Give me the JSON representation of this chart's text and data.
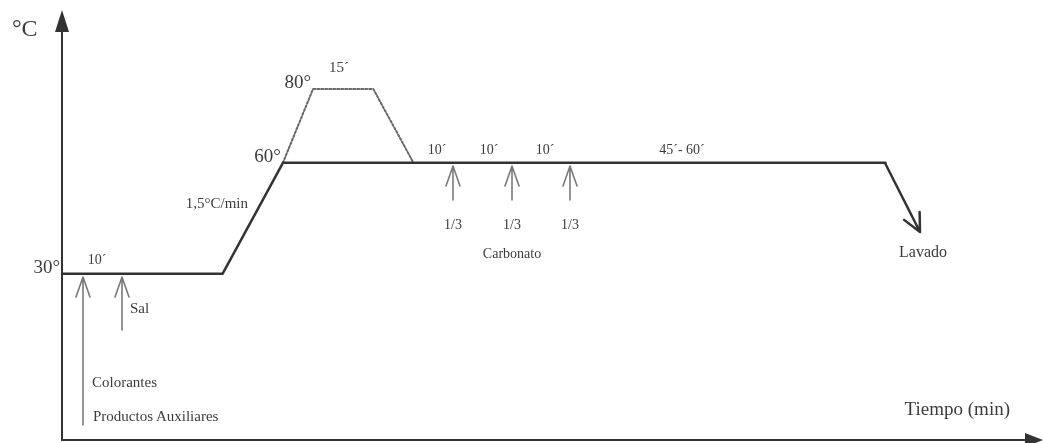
{
  "chart_data": {
    "type": "line",
    "xlabel": "Tiempo (min)",
    "ylabel": "°C",
    "categories": [
      null,
      null,
      null,
      null,
      null,
      null,
      null,
      null,
      null,
      null,
      null,
      null,
      null,
      null,
      null,
      null,
      null,
      null,
      null,
      null,
      null,
      null,
      null,
      null,
      null,
      null,
      null,
      null,
      null,
      null,
      null,
      null,
      null,
      null,
      null,
      null,
      null,
      null,
      null,
      null,
      null,
      null,
      null,
      null,
      null,
      null,
      null,
      null,
      null,
      null,
      null,
      null,
      null,
      null,
      null,
      null,
      null,
      null,
      null,
      null,
      null,
      null,
      null,
      null,
      null,
      null,
      null,
      null,
      null,
      null,
      null,
      null,
      null,
      null,
      null,
      null,
      null,
      null,
      null,
      null,
      null,
      null,
      null,
      null,
      null,
      null,
      null,
      null,
      null,
      null,
      null,
      null,
      null,
      null,
      null,
      null,
      null,
      null
    ],
    "series": [
      {
        "color": "#333333",
        "line_style": "solid",
        "values": [
          30,
          null,
          null,
          null,
          null,
          null,
          null,
          null,
          null,
          null,
          null,
          null,
          null,
          null,
          null,
          null,
          30,
          null,
          null,
          null,
          null,
          null,
          60,
          null,
          null,
          null,
          null,
          null,
          null,
          null,
          null,
          null,
          null,
          null,
          null,
          null,
          null,
          null,
          null,
          null,
          null,
          null,
          null,
          null,
          null,
          null,
          null,
          null,
          null,
          null,
          null,
          null,
          null,
          null,
          null,
          null,
          null,
          null,
          null,
          null,
          null,
          null,
          null,
          null,
          null,
          null,
          null,
          null,
          null,
          null,
          null,
          null,
          null,
          null,
          null,
          null,
          null,
          null,
          null,
          null,
          null,
          null,
          60,
          null,
          null,
          null,
          null,
          null,
          null,
          null,
          null,
          null,
          null,
          null,
          null,
          null,
          null,
          null
        ],
        "value_labels": [
          "30°",
          null,
          null,
          null,
          null,
          null,
          null,
          null,
          null,
          null,
          null,
          null,
          null,
          null,
          null,
          null,
          null,
          null,
          null,
          null,
          null,
          null,
          "60°",
          null,
          null,
          null,
          null,
          null,
          null,
          null,
          null,
          null,
          null,
          null,
          null,
          null,
          null,
          null,
          null,
          null,
          null,
          null,
          null,
          null,
          null,
          null,
          null,
          null,
          null,
          null,
          null,
          null,
          null,
          null,
          null,
          null,
          null,
          null,
          null,
          null,
          null,
          null,
          null,
          null,
          null,
          null,
          null,
          null,
          null,
          null,
          null,
          null,
          null,
          null,
          null,
          null,
          null,
          null,
          null,
          null,
          null,
          null,
          null,
          null,
          null,
          null,
          null,
          null,
          null,
          null,
          null,
          null,
          null,
          null,
          null,
          null,
          null,
          null
        ]
      },
      {
        "color": "#666666",
        "line_style": "dotted",
        "values": [
          null,
          null,
          null,
          null,
          null,
          null,
          null,
          null,
          null,
          null,
          null,
          null,
          null,
          null,
          null,
          null,
          null,
          null,
          null,
          null,
          null,
          null,
          60,
          null,
          null,
          80,
          null,
          null,
          null,
          null,
          null,
          80,
          null,
          null,
          null,
          60,
          null,
          null,
          null,
          null,
          null,
          null,
          null,
          null,
          null,
          null,
          null,
          null,
          null,
          null,
          null,
          null,
          null,
          null,
          null,
          null,
          null,
          null,
          null,
          null,
          null,
          null,
          null,
          null,
          null,
          null,
          null,
          null,
          null,
          null,
          null,
          null,
          null,
          null,
          null,
          null,
          null,
          null,
          null,
          null,
          null,
          null,
          null,
          null,
          null,
          null,
          null,
          null,
          null,
          null,
          null,
          null,
          null,
          null,
          null,
          null,
          null,
          null
        ],
        "value_labels": [
          null,
          null,
          null,
          null,
          null,
          null,
          null,
          null,
          null,
          null,
          null,
          null,
          null,
          null,
          null,
          null,
          null,
          null,
          null,
          null,
          null,
          null,
          null,
          null,
          null,
          "80°",
          null,
          null,
          null,
          null,
          null,
          null,
          null,
          null,
          null,
          null,
          null,
          null,
          null,
          null,
          null,
          null,
          null,
          null,
          null,
          null,
          null,
          null,
          null,
          null,
          null,
          null,
          null,
          null,
          null,
          null,
          null,
          null,
          null,
          null,
          null,
          null,
          null,
          null,
          null,
          null,
          null,
          null,
          null,
          null,
          null,
          null,
          null,
          null,
          null,
          null,
          null,
          null,
          null,
          null,
          null,
          null,
          null,
          null,
          null,
          null,
          null,
          null,
          null,
          null,
          null,
          null,
          null,
          null,
          null,
          null,
          null,
          null
        ]
      }
    ],
    "ylim": [
      -15,
      100
    ],
    "tick_labels": false,
    "marker": "none",
    "annotations": [
      "10´",
      "1,5°C/min",
      "15´",
      "10´",
      "10´",
      "10´",
      "45´- 60´",
      "1/3",
      "1/3",
      "1/3",
      "Carbonato",
      "Lavado",
      "Sal",
      "Colorantes",
      "Productos Auxiliares"
    ]
  }
}
